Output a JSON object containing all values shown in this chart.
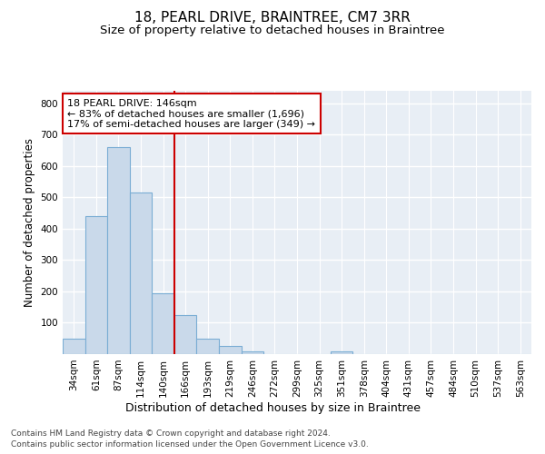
{
  "title": "18, PEARL DRIVE, BRAINTREE, CM7 3RR",
  "subtitle": "Size of property relative to detached houses in Braintree",
  "xlabel": "Distribution of detached houses by size in Braintree",
  "ylabel": "Number of detached properties",
  "footnote1": "Contains HM Land Registry data © Crown copyright and database right 2024.",
  "footnote2": "Contains public sector information licensed under the Open Government Licence v3.0.",
  "bar_labels": [
    "34sqm",
    "61sqm",
    "87sqm",
    "114sqm",
    "140sqm",
    "166sqm",
    "193sqm",
    "219sqm",
    "246sqm",
    "272sqm",
    "299sqm",
    "325sqm",
    "351sqm",
    "378sqm",
    "404sqm",
    "431sqm",
    "457sqm",
    "484sqm",
    "510sqm",
    "537sqm",
    "563sqm"
  ],
  "bar_values": [
    50,
    440,
    660,
    515,
    195,
    125,
    50,
    27,
    10,
    0,
    0,
    0,
    10,
    0,
    0,
    0,
    0,
    0,
    0,
    0,
    0
  ],
  "bar_color": "#c9d9ea",
  "bar_edgecolor": "#7aadd4",
  "vline_x_index": 4,
  "vline_color": "#cc0000",
  "annotation_line1": "18 PEARL DRIVE: 146sqm",
  "annotation_line2": "← 83% of detached houses are smaller (1,696)",
  "annotation_line3": "17% of semi-detached houses are larger (349) →",
  "annotation_box_color": "white",
  "annotation_box_edgecolor": "#cc0000",
  "ylim": [
    0,
    840
  ],
  "yticks": [
    0,
    100,
    200,
    300,
    400,
    500,
    600,
    700,
    800
  ],
  "background_color": "#e8eef5",
  "grid_color": "white",
  "title_fontsize": 11,
  "subtitle_fontsize": 9.5,
  "ylabel_fontsize": 8.5,
  "xlabel_fontsize": 9,
  "tick_fontsize": 7.5,
  "annotation_fontsize": 8,
  "footnote_fontsize": 6.5
}
